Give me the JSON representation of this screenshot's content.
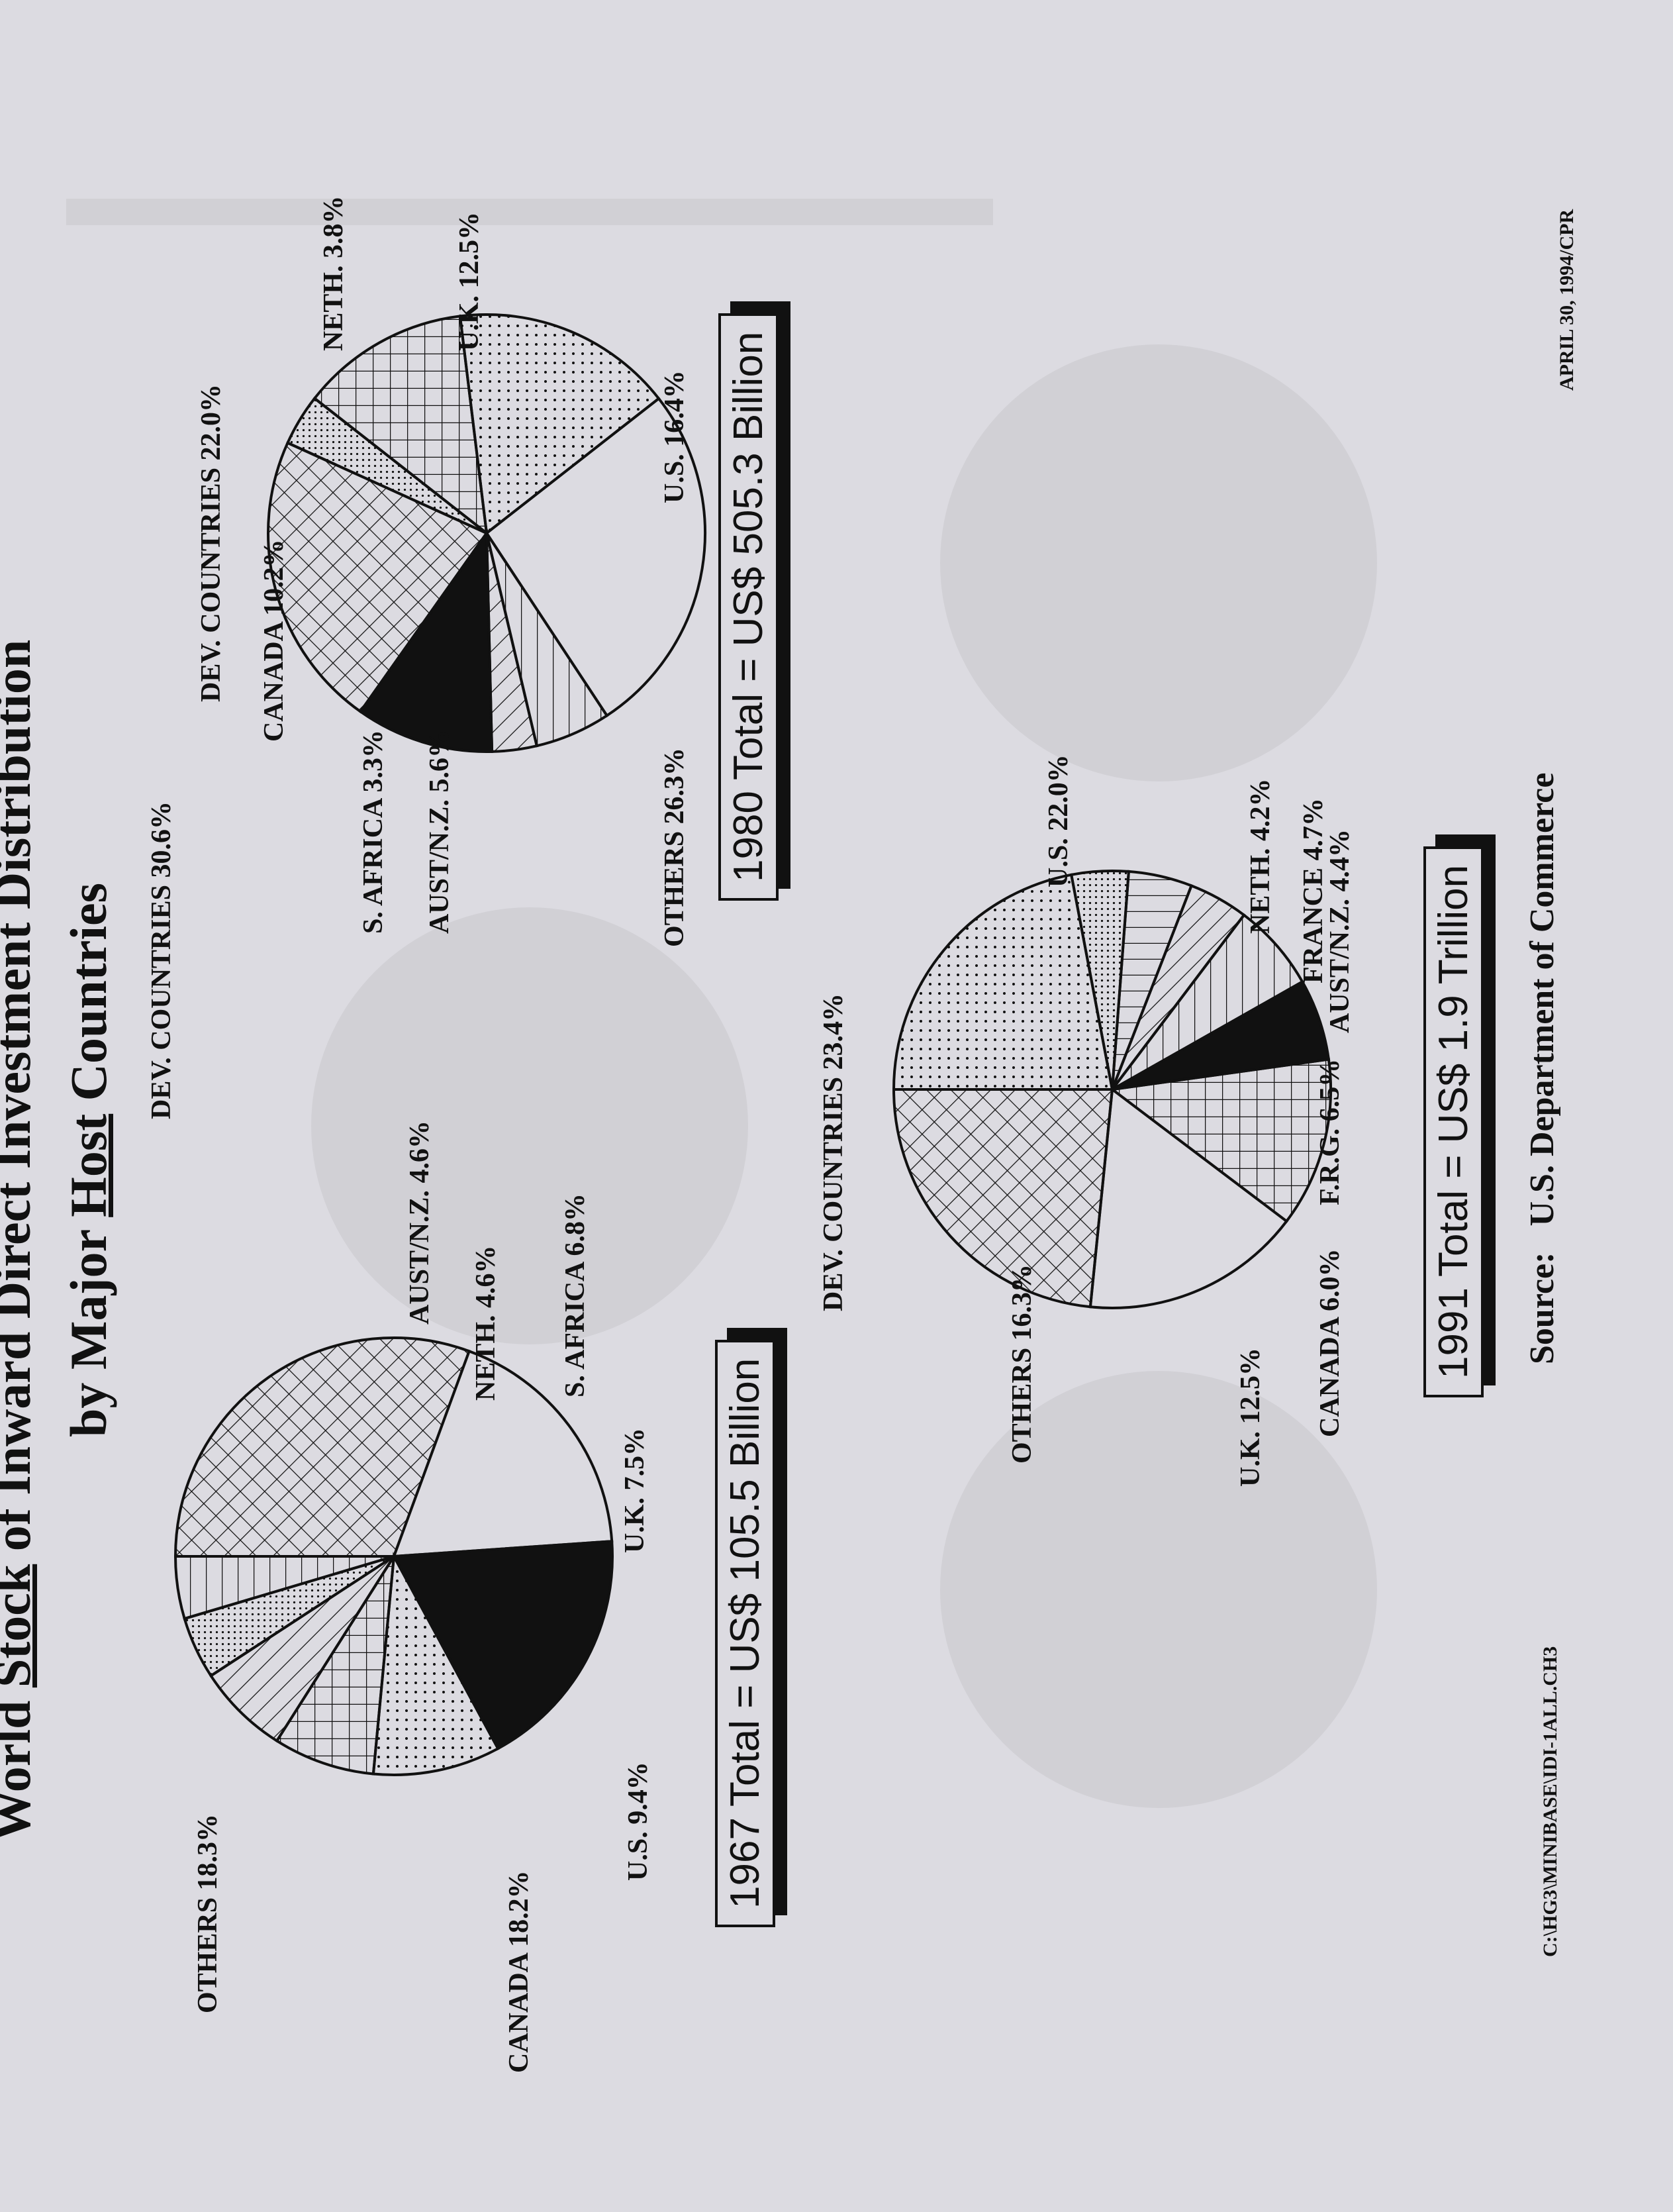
{
  "title": {
    "line1_pre": "World ",
    "line1_underlined": "Stock",
    "line1_post": " of Inward Direct Investment Distribution",
    "line2_pre": "by Major ",
    "line2_underlined": "Host",
    "line2_post": " Countries"
  },
  "footer": {
    "file_path": "C:\\HG3\\MINIBASE\\IDI-1ALL.CH3",
    "date": "APRIL 30, 1994/CPR",
    "source_label": "Source:",
    "source_value": "U.S. Department of Commerce"
  },
  "colors": {
    "background": "#dcdbe1",
    "ink": "#111111"
  },
  "chart_data": [
    {
      "type": "pie",
      "title": "1967 Total = US$ 105.5 Billion",
      "slices": [
        {
          "label": "DEV. COUNTRIES",
          "value": 30.6,
          "display": "DEV. COUNTRIES  30.6%",
          "pattern": "crosshatch"
        },
        {
          "label": "OTHERS",
          "value": 18.3,
          "display": "OTHERS  18.3%",
          "pattern": "none"
        },
        {
          "label": "CANADA",
          "value": 18.2,
          "display": "CANADA  18.2%",
          "pattern": "solid"
        },
        {
          "label": "U.S.",
          "value": 9.4,
          "display": "U.S.  9.4%",
          "pattern": "dots"
        },
        {
          "label": "U.K.",
          "value": 7.5,
          "display": "U.K.  7.5%",
          "pattern": "grid"
        },
        {
          "label": "S. AFRICA",
          "value": 6.8,
          "display": "S. AFRICA  6.8%",
          "pattern": "diagonal"
        },
        {
          "label": "NETH.",
          "value": 4.6,
          "display": "NETH.  4.6%",
          "pattern": "fine-dots"
        },
        {
          "label": "AUST/N.Z.",
          "value": 4.6,
          "display": "AUST/N.Z.  4.6%",
          "pattern": "horizontal"
        }
      ]
    },
    {
      "type": "pie",
      "title": "1980 Total = US$ 505.3 Billion",
      "slices": [
        {
          "label": "OTHERS",
          "value": 26.3,
          "display": "OTHERS  26.3%",
          "pattern": "none"
        },
        {
          "label": "AUST/N.Z.",
          "value": 5.6,
          "display": "AUST/N.Z.  5.6%",
          "pattern": "horizontal"
        },
        {
          "label": "S. AFRICA",
          "value": 3.3,
          "display": "S. AFRICA  3.3%",
          "pattern": "diagonal"
        },
        {
          "label": "CANADA",
          "value": 10.2,
          "display": "CANADA  10.2%",
          "pattern": "solid"
        },
        {
          "label": "DEV. COUNTRIES",
          "value": 22.0,
          "display": "DEV. COUNTRIES  22.0%",
          "pattern": "crosshatch"
        },
        {
          "label": "NETH.",
          "value": 3.8,
          "display": "NETH.  3.8%",
          "pattern": "fine-dots"
        },
        {
          "label": "U.K.",
          "value": 12.5,
          "display": "U.K.  12.5%",
          "pattern": "grid"
        },
        {
          "label": "U.S.",
          "value": 16.4,
          "display": "U.S.  16.4%",
          "pattern": "dots"
        }
      ]
    },
    {
      "type": "pie",
      "title": "1991 Total = US$ 1.9 Trillion",
      "slices": [
        {
          "label": "U.S.",
          "value": 22.0,
          "display": "U.S.  22.0%",
          "pattern": "dots"
        },
        {
          "label": "NETH.",
          "value": 4.2,
          "display": "NETH.  4.2%",
          "pattern": "fine-dots"
        },
        {
          "label": "FRANCE",
          "value": 4.7,
          "display": "FRANCE  4.7%",
          "pattern": "vertical"
        },
        {
          "label": "AUST/N.Z.",
          "value": 4.4,
          "display": "AUST/N.Z.  4.4%",
          "pattern": "diagonal"
        },
        {
          "label": "F.R.G.",
          "value": 6.5,
          "display": "F.R.G.  6.5%",
          "pattern": "horizontal"
        },
        {
          "label": "CANADA",
          "value": 6.0,
          "display": "CANADA  6.0%",
          "pattern": "solid"
        },
        {
          "label": "U.K.",
          "value": 12.5,
          "display": "U.K.  12.5%",
          "pattern": "grid"
        },
        {
          "label": "OTHERS",
          "value": 16.3,
          "display": "OTHERS  16.3%",
          "pattern": "none"
        },
        {
          "label": "DEV. COUNTRIES",
          "value": 23.4,
          "display": "DEV. COUNTRIES  23.4%",
          "pattern": "crosshatch"
        }
      ]
    }
  ]
}
